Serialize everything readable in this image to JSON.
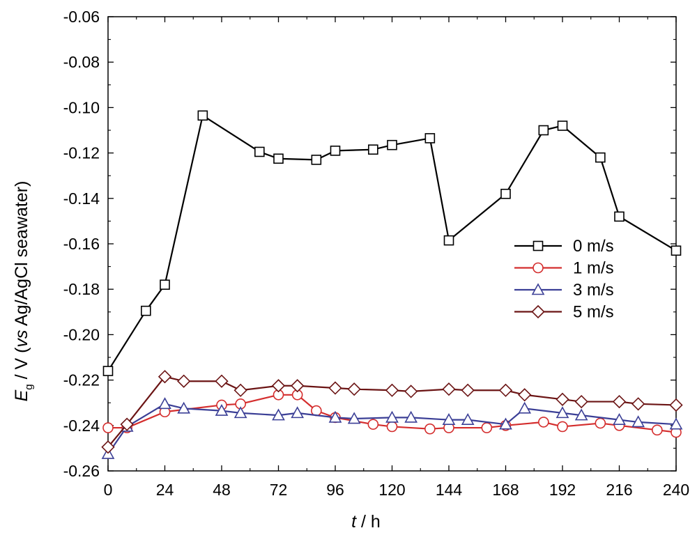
{
  "chart_data": {
    "type": "line",
    "xlabel": {
      "var": "t",
      "unit": " / h"
    },
    "ylabel": {
      "var": "E",
      "sub": "g",
      "mid": " / V (",
      "vs": "vs",
      "rest": " Ag/AgCl seawater)"
    },
    "xlim": [
      0,
      240
    ],
    "ylim": [
      -0.26,
      -0.06
    ],
    "xticks": [
      0,
      24,
      48,
      72,
      96,
      120,
      144,
      168,
      192,
      216,
      240
    ],
    "yticks": [
      -0.26,
      -0.24,
      -0.22,
      -0.2,
      -0.18,
      -0.16,
      -0.14,
      -0.12,
      -0.1,
      -0.08,
      -0.06
    ],
    "xtick_labels": [
      "0",
      "24",
      "48",
      "72",
      "96",
      "120",
      "144",
      "168",
      "192",
      "216",
      "240"
    ],
    "ytick_labels": [
      "-0.26",
      "-0.24",
      "-0.22",
      "-0.20",
      "-0.18",
      "-0.16",
      "-0.14",
      "-0.12",
      "-0.10",
      "-0.08",
      "-0.06"
    ],
    "grid": false,
    "legend_position": "right",
    "series": [
      {
        "name": "0 m/s",
        "color": "#000000",
        "marker": "square",
        "x": [
          0,
          16,
          24,
          40,
          64,
          72,
          88,
          96,
          112,
          120,
          136,
          144,
          168,
          184,
          192,
          208,
          216,
          240
        ],
        "y": [
          -0.216,
          -0.1895,
          -0.178,
          -0.1035,
          -0.1195,
          -0.1225,
          -0.123,
          -0.119,
          -0.1185,
          -0.1165,
          -0.1135,
          -0.1585,
          -0.138,
          -0.11,
          -0.108,
          -0.122,
          -0.148,
          -0.163
        ]
      },
      {
        "name": "1 m/s",
        "color": "#d42d2d",
        "marker": "circle",
        "x": [
          0,
          8,
          24,
          48,
          56,
          72,
          80,
          88,
          96,
          112,
          120,
          136,
          144,
          160,
          168,
          184,
          192,
          208,
          216,
          232,
          240
        ],
        "y": [
          -0.241,
          -0.241,
          -0.234,
          -0.231,
          -0.2305,
          -0.2265,
          -0.2265,
          -0.2335,
          -0.2365,
          -0.2395,
          -0.2405,
          -0.2415,
          -0.241,
          -0.241,
          -0.24,
          -0.2385,
          -0.2405,
          -0.239,
          -0.24,
          -0.242,
          -0.243
        ]
      },
      {
        "name": "3 m/s",
        "color": "#3b3f96",
        "marker": "triangle",
        "x": [
          0,
          8,
          24,
          32,
          48,
          56,
          72,
          80,
          96,
          104,
          120,
          128,
          144,
          152,
          168,
          176,
          192,
          200,
          216,
          224,
          240
        ],
        "y": [
          -0.2525,
          -0.2405,
          -0.2305,
          -0.2325,
          -0.2335,
          -0.2345,
          -0.2355,
          -0.2345,
          -0.2365,
          -0.237,
          -0.2365,
          -0.2365,
          -0.2375,
          -0.2375,
          -0.2395,
          -0.2325,
          -0.2345,
          -0.2355,
          -0.2375,
          -0.2385,
          -0.2395
        ]
      },
      {
        "name": "5 m/s",
        "color": "#6b1414",
        "marker": "diamond",
        "x": [
          0,
          8,
          24,
          32,
          48,
          56,
          72,
          80,
          96,
          104,
          120,
          128,
          144,
          152,
          168,
          176,
          192,
          200,
          216,
          224,
          240
        ],
        "y": [
          -0.2495,
          -0.2395,
          -0.2185,
          -0.2205,
          -0.2205,
          -0.2245,
          -0.2225,
          -0.2225,
          -0.2235,
          -0.224,
          -0.2245,
          -0.225,
          -0.224,
          -0.2245,
          -0.2245,
          -0.2265,
          -0.2285,
          -0.2295,
          -0.2295,
          -0.2305,
          -0.231
        ]
      }
    ]
  }
}
